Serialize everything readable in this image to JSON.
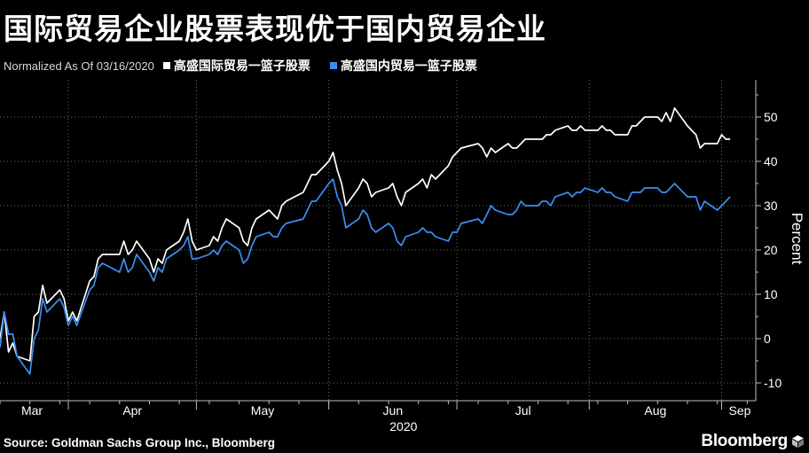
{
  "title": "国际贸易企业股票表现优于国内贸易企业",
  "legend": {
    "note": "Normalized As Of 03/16/2020",
    "items": [
      {
        "label": "高盛国际贸易一篮子股票",
        "color": "#ffffff"
      },
      {
        "label": "高盛国内贸易一篮子股票",
        "color": "#3b8ff0"
      }
    ]
  },
  "footer": {
    "source": "Source: Goldman Sachs Group Inc., Bloomberg",
    "brand": "Bloomberg"
  },
  "chart_data": {
    "type": "line",
    "title": "国际贸易企业股票表现优于国内贸易企业",
    "ylabel": "Percent",
    "xlabel": "",
    "year_label": "2020",
    "ylim": [
      -14,
      58
    ],
    "yticks": [
      -10,
      0,
      10,
      20,
      30,
      40,
      50
    ],
    "ytick_labels": [
      "-10",
      "0",
      "10",
      "20",
      "30",
      "40",
      "50"
    ],
    "x_range": [
      "2020-03-16",
      "2020-09-09"
    ],
    "x_month_labels": [
      {
        "label": "Mar",
        "date": "2020-03-16"
      },
      {
        "label": "Apr",
        "date": "2020-04-01"
      },
      {
        "label": "May",
        "date": "2020-05-01"
      },
      {
        "label": "Jun",
        "date": "2020-06-01"
      },
      {
        "label": "Jul",
        "date": "2020-07-01"
      },
      {
        "label": "Aug",
        "date": "2020-08-01"
      },
      {
        "label": "Sep",
        "date": "2020-09-01"
      }
    ],
    "grid": true,
    "y_axis_position": "right",
    "legend_position": "top-left",
    "series": [
      {
        "name": "高盛国际贸易一篮子股票",
        "color": "#ffffff",
        "points": [
          [
            "2020-03-16",
            0
          ],
          [
            "2020-03-17",
            6
          ],
          [
            "2020-03-18",
            -3
          ],
          [
            "2020-03-19",
            -1
          ],
          [
            "2020-03-20",
            -4
          ],
          [
            "2020-03-23",
            -5
          ],
          [
            "2020-03-24",
            5
          ],
          [
            "2020-03-25",
            6
          ],
          [
            "2020-03-26",
            12
          ],
          [
            "2020-03-27",
            8
          ],
          [
            "2020-03-30",
            11
          ],
          [
            "2020-03-31",
            9
          ],
          [
            "2020-04-01",
            4
          ],
          [
            "2020-04-02",
            6
          ],
          [
            "2020-04-03",
            4
          ],
          [
            "2020-04-06",
            13
          ],
          [
            "2020-04-07",
            14
          ],
          [
            "2020-04-08",
            18
          ],
          [
            "2020-04-09",
            19
          ],
          [
            "2020-04-13",
            19
          ],
          [
            "2020-04-14",
            22
          ],
          [
            "2020-04-15",
            19
          ],
          [
            "2020-04-16",
            20
          ],
          [
            "2020-04-17",
            22
          ],
          [
            "2020-04-20",
            18
          ],
          [
            "2020-04-21",
            15
          ],
          [
            "2020-04-22",
            18
          ],
          [
            "2020-04-23",
            17
          ],
          [
            "2020-04-24",
            20
          ],
          [
            "2020-04-27",
            22
          ],
          [
            "2020-04-28",
            24
          ],
          [
            "2020-04-29",
            27
          ],
          [
            "2020-04-30",
            22
          ],
          [
            "2020-05-01",
            20
          ],
          [
            "2020-05-04",
            21
          ],
          [
            "2020-05-05",
            23
          ],
          [
            "2020-05-06",
            22
          ],
          [
            "2020-05-07",
            25
          ],
          [
            "2020-05-08",
            27
          ],
          [
            "2020-05-11",
            25
          ],
          [
            "2020-05-12",
            22
          ],
          [
            "2020-05-13",
            21
          ],
          [
            "2020-05-14",
            25
          ],
          [
            "2020-05-15",
            27
          ],
          [
            "2020-05-18",
            29
          ],
          [
            "2020-05-19",
            28
          ],
          [
            "2020-05-20",
            27
          ],
          [
            "2020-05-21",
            30
          ],
          [
            "2020-05-22",
            31
          ],
          [
            "2020-05-26",
            33
          ],
          [
            "2020-05-27",
            35
          ],
          [
            "2020-05-28",
            37
          ],
          [
            "2020-05-29",
            37
          ],
          [
            "2020-06-01",
            40
          ],
          [
            "2020-06-02",
            42
          ],
          [
            "2020-06-03",
            38
          ],
          [
            "2020-06-04",
            35
          ],
          [
            "2020-06-05",
            30
          ],
          [
            "2020-06-08",
            34
          ],
          [
            "2020-06-09",
            36
          ],
          [
            "2020-06-10",
            35
          ],
          [
            "2020-06-11",
            32
          ],
          [
            "2020-06-12",
            33
          ],
          [
            "2020-06-15",
            34
          ],
          [
            "2020-06-16",
            35
          ],
          [
            "2020-06-17",
            32
          ],
          [
            "2020-06-18",
            30
          ],
          [
            "2020-06-19",
            33
          ],
          [
            "2020-06-22",
            35
          ],
          [
            "2020-06-23",
            36
          ],
          [
            "2020-06-24",
            34
          ],
          [
            "2020-06-25",
            37
          ],
          [
            "2020-06-26",
            36
          ],
          [
            "2020-06-29",
            39
          ],
          [
            "2020-06-30",
            41
          ],
          [
            "2020-07-01",
            42
          ],
          [
            "2020-07-02",
            43
          ],
          [
            "2020-07-06",
            44
          ],
          [
            "2020-07-07",
            43
          ],
          [
            "2020-07-08",
            41
          ],
          [
            "2020-07-09",
            43
          ],
          [
            "2020-07-10",
            42
          ],
          [
            "2020-07-13",
            44
          ],
          [
            "2020-07-14",
            43
          ],
          [
            "2020-07-15",
            43
          ],
          [
            "2020-07-16",
            44
          ],
          [
            "2020-07-17",
            45
          ],
          [
            "2020-07-20",
            45
          ],
          [
            "2020-07-21",
            45
          ],
          [
            "2020-07-22",
            46
          ],
          [
            "2020-07-23",
            46
          ],
          [
            "2020-07-24",
            47
          ],
          [
            "2020-07-27",
            48
          ],
          [
            "2020-07-28",
            47
          ],
          [
            "2020-07-29",
            47
          ],
          [
            "2020-07-30",
            48
          ],
          [
            "2020-07-31",
            47
          ],
          [
            "2020-08-03",
            47
          ],
          [
            "2020-08-04",
            48
          ],
          [
            "2020-08-05",
            47
          ],
          [
            "2020-08-06",
            47
          ],
          [
            "2020-08-07",
            46
          ],
          [
            "2020-08-10",
            46
          ],
          [
            "2020-08-11",
            48
          ],
          [
            "2020-08-12",
            48
          ],
          [
            "2020-08-13",
            49
          ],
          [
            "2020-08-14",
            50
          ],
          [
            "2020-08-17",
            50
          ],
          [
            "2020-08-18",
            49
          ],
          [
            "2020-08-19",
            51
          ],
          [
            "2020-08-20",
            49
          ],
          [
            "2020-08-21",
            52
          ],
          [
            "2020-08-24",
            48
          ],
          [
            "2020-08-25",
            47
          ],
          [
            "2020-08-26",
            46
          ],
          [
            "2020-08-27",
            43
          ],
          [
            "2020-08-28",
            44
          ],
          [
            "2020-08-31",
            44
          ],
          [
            "2020-09-01",
            46
          ],
          [
            "2020-09-02",
            45
          ],
          [
            "2020-09-03",
            45
          ]
        ]
      },
      {
        "name": "高盛国内贸易一篮子股票",
        "color": "#3b8ff0",
        "points": [
          [
            "2020-03-16",
            -2
          ],
          [
            "2020-03-17",
            6
          ],
          [
            "2020-03-18",
            1
          ],
          [
            "2020-03-19",
            1
          ],
          [
            "2020-03-20",
            -4
          ],
          [
            "2020-03-23",
            -8
          ],
          [
            "2020-03-24",
            0
          ],
          [
            "2020-03-25",
            2
          ],
          [
            "2020-03-26",
            9
          ],
          [
            "2020-03-27",
            6
          ],
          [
            "2020-03-30",
            9
          ],
          [
            "2020-03-31",
            7
          ],
          [
            "2020-04-01",
            3
          ],
          [
            "2020-04-02",
            5
          ],
          [
            "2020-04-03",
            3
          ],
          [
            "2020-04-06",
            11
          ],
          [
            "2020-04-07",
            12
          ],
          [
            "2020-04-08",
            16
          ],
          [
            "2020-04-09",
            17
          ],
          [
            "2020-04-13",
            15
          ],
          [
            "2020-04-14",
            18
          ],
          [
            "2020-04-15",
            15
          ],
          [
            "2020-04-16",
            16
          ],
          [
            "2020-04-17",
            19
          ],
          [
            "2020-04-20",
            15
          ],
          [
            "2020-04-21",
            13
          ],
          [
            "2020-04-22",
            16
          ],
          [
            "2020-04-23",
            15
          ],
          [
            "2020-04-24",
            18
          ],
          [
            "2020-04-27",
            20
          ],
          [
            "2020-04-28",
            21
          ],
          [
            "2020-04-29",
            23
          ],
          [
            "2020-04-30",
            18
          ],
          [
            "2020-05-01",
            18
          ],
          [
            "2020-05-04",
            19
          ],
          [
            "2020-05-05",
            20
          ],
          [
            "2020-05-06",
            19
          ],
          [
            "2020-05-07",
            21
          ],
          [
            "2020-05-08",
            22
          ],
          [
            "2020-05-11",
            20
          ],
          [
            "2020-05-12",
            17
          ],
          [
            "2020-05-13",
            18
          ],
          [
            "2020-05-14",
            21
          ],
          [
            "2020-05-15",
            23
          ],
          [
            "2020-05-18",
            24
          ],
          [
            "2020-05-19",
            23
          ],
          [
            "2020-05-20",
            23
          ],
          [
            "2020-05-21",
            25
          ],
          [
            "2020-05-22",
            26
          ],
          [
            "2020-05-26",
            27
          ],
          [
            "2020-05-27",
            29
          ],
          [
            "2020-05-28",
            31
          ],
          [
            "2020-05-29",
            31
          ],
          [
            "2020-06-01",
            35
          ],
          [
            "2020-06-02",
            36
          ],
          [
            "2020-06-03",
            32
          ],
          [
            "2020-06-04",
            30
          ],
          [
            "2020-06-05",
            25
          ],
          [
            "2020-06-08",
            27
          ],
          [
            "2020-06-09",
            29
          ],
          [
            "2020-06-10",
            28
          ],
          [
            "2020-06-11",
            25
          ],
          [
            "2020-06-12",
            24
          ],
          [
            "2020-06-15",
            26
          ],
          [
            "2020-06-16",
            25
          ],
          [
            "2020-06-17",
            22
          ],
          [
            "2020-06-18",
            21
          ],
          [
            "2020-06-19",
            23
          ],
          [
            "2020-06-22",
            24
          ],
          [
            "2020-06-23",
            25
          ],
          [
            "2020-06-24",
            24
          ],
          [
            "2020-06-25",
            24
          ],
          [
            "2020-06-26",
            23
          ],
          [
            "2020-06-29",
            22
          ],
          [
            "2020-06-30",
            24
          ],
          [
            "2020-07-01",
            24
          ],
          [
            "2020-07-02",
            26
          ],
          [
            "2020-07-06",
            27
          ],
          [
            "2020-07-07",
            26
          ],
          [
            "2020-07-08",
            28
          ],
          [
            "2020-07-09",
            30
          ],
          [
            "2020-07-10",
            29
          ],
          [
            "2020-07-13",
            28
          ],
          [
            "2020-07-14",
            28
          ],
          [
            "2020-07-15",
            29
          ],
          [
            "2020-07-16",
            31
          ],
          [
            "2020-07-17",
            30
          ],
          [
            "2020-07-20",
            30
          ],
          [
            "2020-07-21",
            31
          ],
          [
            "2020-07-22",
            31
          ],
          [
            "2020-07-23",
            30
          ],
          [
            "2020-07-24",
            32
          ],
          [
            "2020-07-27",
            33
          ],
          [
            "2020-07-28",
            32
          ],
          [
            "2020-07-29",
            33
          ],
          [
            "2020-07-30",
            33
          ],
          [
            "2020-07-31",
            34
          ],
          [
            "2020-08-03",
            33
          ],
          [
            "2020-08-04",
            34
          ],
          [
            "2020-08-05",
            33
          ],
          [
            "2020-08-06",
            33
          ],
          [
            "2020-08-07",
            32
          ],
          [
            "2020-08-10",
            31
          ],
          [
            "2020-08-11",
            33
          ],
          [
            "2020-08-12",
            33
          ],
          [
            "2020-08-13",
            33
          ],
          [
            "2020-08-14",
            34
          ],
          [
            "2020-08-17",
            34
          ],
          [
            "2020-08-18",
            33
          ],
          [
            "2020-08-19",
            33
          ],
          [
            "2020-08-20",
            34
          ],
          [
            "2020-08-21",
            35
          ],
          [
            "2020-08-24",
            32
          ],
          [
            "2020-08-25",
            32
          ],
          [
            "2020-08-26",
            32
          ],
          [
            "2020-08-27",
            29
          ],
          [
            "2020-08-28",
            31
          ],
          [
            "2020-08-31",
            29
          ],
          [
            "2020-09-01",
            30
          ],
          [
            "2020-09-02",
            31
          ],
          [
            "2020-09-03",
            32
          ]
        ]
      }
    ]
  }
}
